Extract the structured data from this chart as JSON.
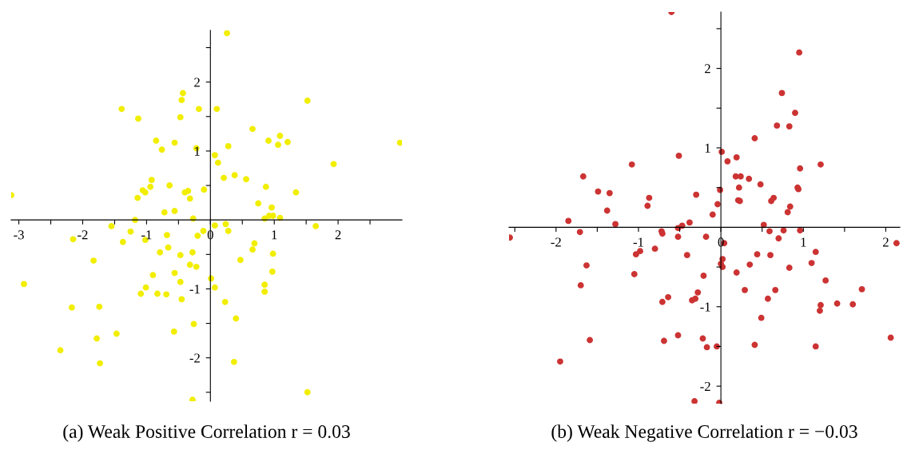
{
  "chart_data": [
    {
      "type": "scatter",
      "color": "#f2ee00",
      "marker": "circle",
      "grid": false,
      "x": [
        -3.12,
        -2.92,
        -2.35,
        -2.15,
        -2.17,
        -1.83,
        -1.78,
        -1.74,
        -1.73,
        -1.55,
        -1.47,
        -1.39,
        -1.37,
        -1.25,
        -1.18,
        -1.14,
        -1.13,
        -1.09,
        -1.06,
        -1.02,
        -1.02,
        -1.01,
        -0.94,
        -0.92,
        -0.9,
        -0.85,
        -0.83,
        -0.79,
        -0.76,
        -0.72,
        -0.68,
        -0.69,
        -0.66,
        -0.64,
        -0.57,
        -0.56,
        -0.56,
        -0.56,
        -0.47,
        -0.47,
        -0.47,
        -0.45,
        -0.45,
        -0.43,
        -0.4,
        -0.35,
        -0.32,
        -0.32,
        -0.28,
        -0.27,
        -0.26,
        -0.28,
        -0.22,
        -0.2,
        -0.22,
        -0.18,
        -0.1,
        0.26,
        0.1,
        0.07,
        0.12,
        0.28,
        0.21,
        0.38,
        0.56,
        0.66,
        0.91,
        1.06,
        1.09,
        1.21,
        1.52,
        1.93,
        2.97,
        0.87,
        1.34,
        0.75,
        0.96,
        0.85,
        0.92,
        0.98,
        1.09,
        1.65,
        -0.11,
        0.07,
        0.24,
        0.28,
        0.69,
        0.66,
        0.98,
        0.47,
        0.97,
        0.01,
        0.07,
        0.85,
        0.85,
        0.23,
        0.4,
        0.37,
        1.52
      ],
      "values": [
        0.36,
        -0.93,
        -1.89,
        -0.28,
        -1.27,
        -0.59,
        -1.72,
        -1.26,
        -2.08,
        -0.09,
        -1.65,
        1.61,
        -0.32,
        -0.17,
        0.0,
        0.32,
        1.47,
        -1.07,
        0.43,
        0.4,
        -0.29,
        -0.98,
        0.48,
        0.58,
        -0.8,
        1.15,
        -1.07,
        -0.47,
        1.02,
        0.11,
        -0.22,
        -1.08,
        -0.4,
        0.5,
        -1.62,
        1.12,
        0.13,
        -0.77,
        1.49,
        -0.51,
        -0.9,
        -1.15,
        1.74,
        1.84,
        0.4,
        0.42,
        0.31,
        -0.65,
        -0.47,
        0.02,
        -1.51,
        -2.61,
        -0.68,
        -0.23,
        1.04,
        1.61,
        0.44,
        2.71,
        1.61,
        0.94,
        0.83,
        1.07,
        0.61,
        0.65,
        0.59,
        1.32,
        1.15,
        1.09,
        1.22,
        1.13,
        1.73,
        0.81,
        1.12,
        0.48,
        0.4,
        0.24,
        0.18,
        0.02,
        0.06,
        0.06,
        0.03,
        -0.09,
        -0.16,
        -0.08,
        -0.06,
        -0.16,
        -0.34,
        -0.43,
        -0.49,
        -0.58,
        -0.75,
        -0.85,
        -0.98,
        -0.94,
        -1.04,
        -1.19,
        -1.43,
        -2.06,
        -2.5
      ],
      "xlim": [
        -3.12,
        3.0
      ],
      "ylim": [
        -2.63,
        2.75
      ],
      "xticks": [
        -3,
        {
          "value": -2.5,
          "label": null
        },
        -2,
        {
          "value": -1.5,
          "label": null
        },
        -1,
        {
          "value": -0.5,
          "label": null
        },
        0,
        {
          "value": 0.5,
          "label": null
        },
        1,
        {
          "value": 1.5,
          "label": null
        },
        2,
        {
          "value": 2.5,
          "label": null
        }
      ],
      "yticks": [
        {
          "value": -2.5,
          "label": null
        },
        -2,
        {
          "value": -1.5,
          "label": null
        },
        -1,
        {
          "value": -0.5,
          "label": null
        },
        {
          "value": 0.5,
          "label": null
        },
        1,
        {
          "value": 1.5,
          "label": null
        },
        2,
        {
          "value": 2.5,
          "label": null
        }
      ],
      "annotations": [
        "(a) Weak Positive Correlation r = 0.03"
      ]
    },
    {
      "type": "scatter",
      "color": "#cc3333",
      "marker": "circle",
      "grid": false,
      "x": [
        -0.6,
        -0.51,
        -1.08,
        -1.67,
        -1.49,
        -1.35,
        -0.87,
        -0.89,
        -0.3,
        -1.38,
        -1.28,
        -1.85,
        -2.56,
        -1.71,
        -0.72,
        -0.71,
        -0.52,
        -0.52,
        -0.47,
        -0.38,
        -0.18,
        -0.1,
        -0.04,
        -0.8,
        -0.98,
        -1.03,
        -0.41,
        -1.63,
        -1.05,
        -0.21,
        -1.7,
        -0.64,
        -0.71,
        -0.28,
        -0.31,
        -0.35,
        -1.59,
        -0.69,
        -0.52,
        -0.22,
        -0.17,
        -0.05,
        -1.95,
        -0.32,
        0.95,
        0.74,
        0.9,
        0.68,
        0.83,
        0.41,
        0.01,
        0.08,
        0.19,
        1.21,
        0.96,
        0.18,
        0.24,
        0.34,
        0.48,
        0.22,
        -0.01,
        0.93,
        0.94,
        0.64,
        0.61,
        0.21,
        0.23,
        0.84,
        0.81,
        0.52,
        0.59,
        0.76,
        0.96,
        0.7,
        0.04,
        1.15,
        0.44,
        0.6,
        0.02,
        0.0,
        0.02,
        0.35,
        1.1,
        0.83,
        0.19,
        1.27,
        1.71,
        0.29,
        0.66,
        0.57,
        1.41,
        1.6,
        1.21,
        1.2,
        0.49,
        0.41,
        1.15,
        2.06,
        -0.02,
        2.13
      ],
      "values": [
        2.71,
        0.9,
        0.79,
        0.64,
        0.45,
        0.43,
        0.37,
        0.27,
        0.41,
        0.21,
        0.04,
        0.08,
        -0.13,
        -0.06,
        -0.05,
        -0.08,
        -0.12,
        -0.01,
        0.02,
        0.06,
        -0.12,
        0.16,
        0.29,
        -0.27,
        -0.3,
        -0.34,
        -0.35,
        -0.48,
        -0.59,
        -0.61,
        -0.73,
        -0.88,
        -0.94,
        -0.82,
        -0.9,
        -0.92,
        -1.42,
        -1.43,
        -1.36,
        -1.4,
        -1.51,
        -1.5,
        -1.69,
        -2.19,
        2.2,
        1.69,
        1.44,
        1.28,
        1.27,
        1.12,
        0.95,
        0.83,
        0.88,
        0.79,
        0.74,
        0.64,
        0.64,
        0.61,
        0.54,
        0.5,
        0.47,
        0.5,
        0.48,
        0.37,
        0.33,
        0.34,
        0.33,
        0.26,
        0.19,
        0.03,
        -0.05,
        -0.04,
        -0.04,
        -0.14,
        -0.2,
        -0.31,
        -0.34,
        -0.35,
        -0.4,
        -0.46,
        -0.5,
        -0.47,
        -0.45,
        -0.51,
        -0.57,
        -0.67,
        -0.78,
        -0.79,
        -0.79,
        -0.9,
        -0.96,
        -0.97,
        -0.98,
        -1.05,
        -1.14,
        -1.48,
        -1.5,
        -1.39,
        -2.21,
        -0.2
      ],
      "xlim": [
        -2.57,
        2.17
      ],
      "ylim": [
        -2.22,
        2.71
      ],
      "xticks": [
        {
          "value": -2.5,
          "label": null
        },
        -2,
        {
          "value": -1.5,
          "label": null
        },
        -1,
        {
          "value": -0.5,
          "label": null
        },
        0,
        {
          "value": 0.5,
          "label": null
        },
        1,
        {
          "value": 1.5,
          "label": null
        },
        2
      ],
      "yticks": [
        -2,
        {
          "value": -1.5,
          "label": null
        },
        -1,
        {
          "value": -0.5,
          "label": null
        },
        {
          "value": 0.5,
          "label": null
        },
        1,
        {
          "value": 1.5,
          "label": null
        },
        2,
        {
          "value": 2.5,
          "label": null
        }
      ],
      "annotations": [
        "(b) Weak Negative Correlation r = −0.03"
      ]
    }
  ]
}
